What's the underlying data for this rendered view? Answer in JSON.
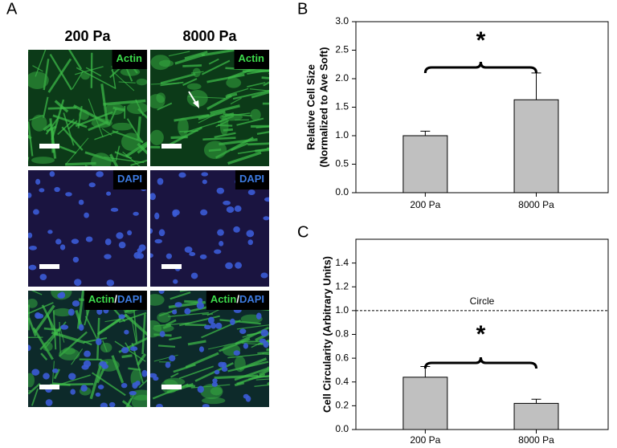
{
  "panel_a": {
    "label": "A",
    "columns": [
      "200 Pa",
      "8000 Pa"
    ],
    "rows": [
      {
        "parts": [
          "Actin"
        ],
        "colors": [
          "#3ddc4c"
        ]
      },
      {
        "parts": [
          "DAPI"
        ],
        "colors": [
          "#3d7be0"
        ]
      },
      {
        "parts": [
          "Actin",
          "/",
          "DAPI"
        ],
        "colors": [
          "#3ddc4c",
          "#ffffff",
          "#3d7be0"
        ]
      }
    ]
  },
  "chart_data": [
    {
      "type": "bar",
      "panel": "B",
      "ylabel": [
        "Relative Cell Size",
        "(Normalized to Ave Soft)"
      ],
      "categories": [
        "200 Pa",
        "8000 Pa"
      ],
      "values": [
        1.0,
        1.63
      ],
      "errors": [
        0.08,
        0.47
      ],
      "color": "#c0c0c0",
      "ylim": [
        0,
        3
      ],
      "yticks": [
        {
          "value": 0,
          "label": "0.0"
        },
        0.5,
        {
          "value": 1,
          "label": "1.0"
        },
        1.5,
        {
          "value": 2,
          "label": "2.0"
        },
        2.5,
        {
          "value": 3,
          "label": "3.0"
        }
      ],
      "annotations": [
        {
          "text": "*"
        }
      ]
    },
    {
      "type": "bar",
      "panel": "C",
      "ylabel": [
        "Cell Circularity (Arbitrary Units)"
      ],
      "categories": [
        "200 Pa",
        "8000 Pa"
      ],
      "values": [
        0.44,
        0.22
      ],
      "errors": [
        0.09,
        0.035
      ],
      "color": "#c0c0c0",
      "ylim": [
        0,
        1.6
      ],
      "yticks": [
        {
          "value": 0,
          "label": "0.0"
        },
        0.2,
        0.4,
        0.6,
        0.8,
        {
          "value": 1,
          "label": "1.0"
        },
        1.2,
        1.4
      ],
      "reference_line": {
        "value": 1,
        "label": "Circle"
      },
      "annotations": [
        {
          "text": "*"
        }
      ]
    }
  ]
}
